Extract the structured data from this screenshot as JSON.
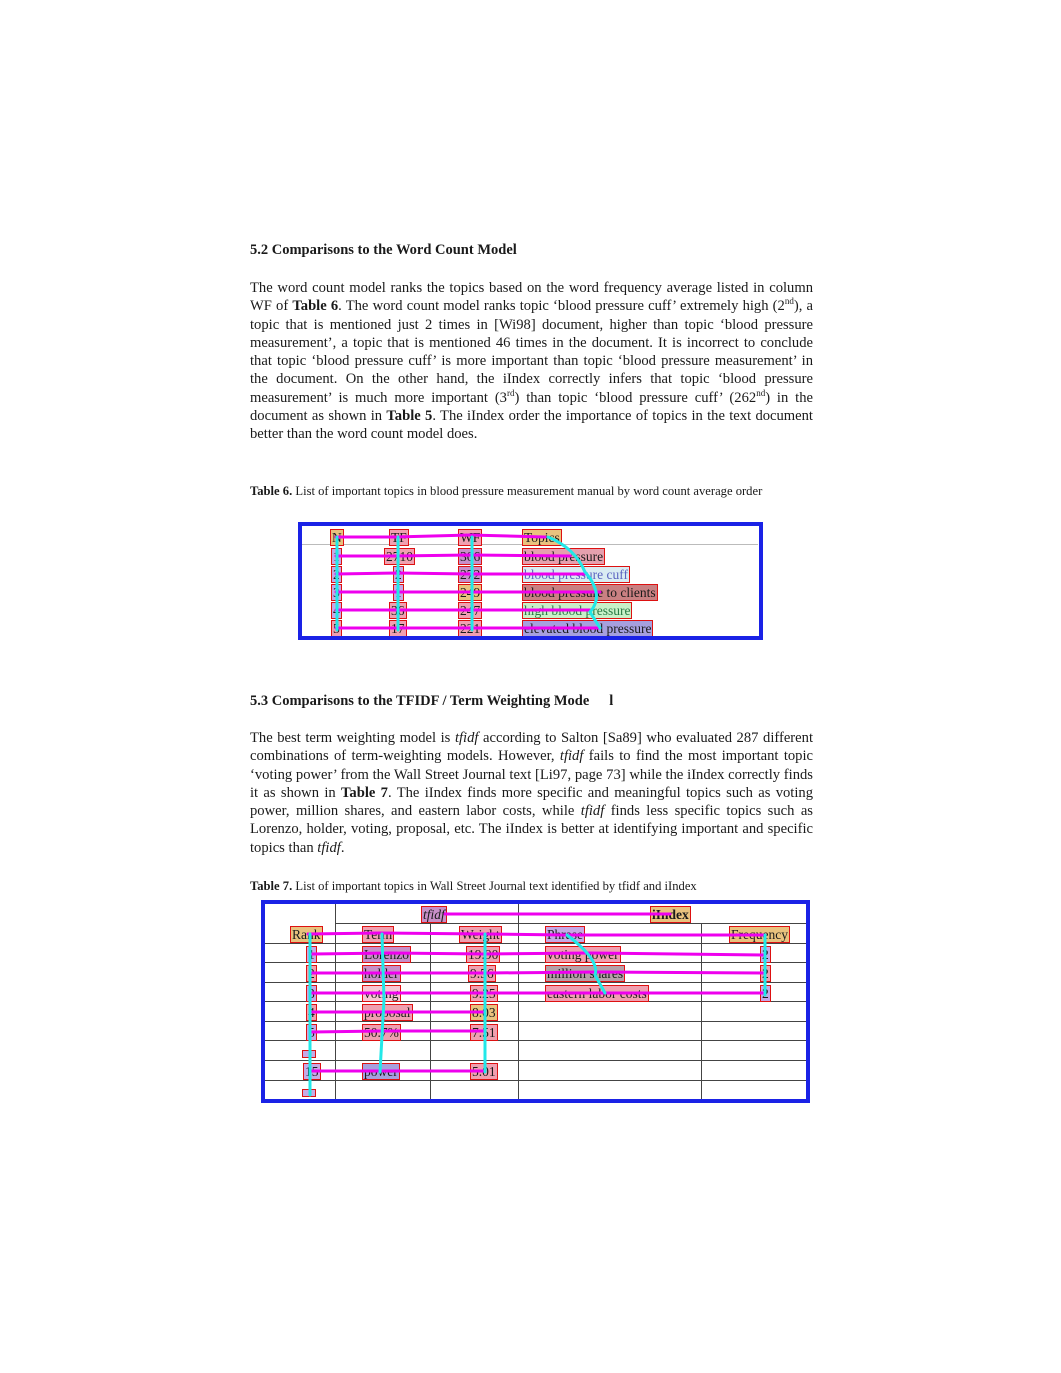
{
  "section_52": {
    "heading": "5.2  Comparisons to the Word Count Model",
    "para_1": "The word count model ranks the topics based on the word frequency average listed in column WF of ",
    "ref_table6": "Table 6",
    "para_2": ". The word count model ranks topic ‘blood pressure cuff’ extremely high (2",
    "sup_nd": "nd",
    "para_3": "), a topic that is mentioned just 2 times in [Wi98] document, higher than topic ‘blood pressure measurement’, a topic that is mentioned 46 times in the document. It is incorrect to conclude that topic ‘blood pressure cuff’ is more important than topic ‘blood pressure measurement’ in the document. On the other hand, the iIndex correctly infers that topic ‘blood pressure measurement’ is much more important (3",
    "sup_rd": "rd",
    "para_4": ") than topic ‘blood pressure cuff’ (262",
    "sup_nd2": "nd",
    "para_5": ") in the document as shown in ",
    "ref_table5": "Table 5",
    "para_6": ". The iIndex order the importance of topics in the text document better than the word count model does."
  },
  "table6": {
    "caption_label": "Table 6.",
    "caption_text": "  List of important topics in blood pressure measurement manual by word count average order",
    "headers": [
      "N",
      "TF",
      "WF",
      "Topics"
    ],
    "rows": [
      [
        "1",
        "2710",
        "306",
        "blood pressure"
      ],
      [
        "2",
        "2",
        "272",
        "blood pressure cuff"
      ],
      [
        "3",
        "1",
        "249",
        "blood pressure to clients"
      ],
      [
        "4",
        "36",
        "247",
        "high blood pressure"
      ],
      [
        "5",
        "17",
        "221",
        "elevated blood pressure"
      ]
    ]
  },
  "section_53": {
    "heading": "5.3  Comparisons to the TFIDF / Term Weighting Mode",
    "heading_tail": "l",
    "para_1": "The best term weighting model is ",
    "tfidf_1": "tfidf",
    "para_2": " according to Salton [Sa89] who evaluated 287 different combinations of term-weighting models. However, ",
    "tfidf_2": "tfidf",
    "para_3": " fails to find the most important topic ‘voting power’ from the Wall Street Journal text [Li97, page 73] while the iIndex correctly finds it as shown in ",
    "ref_table7": "Table 7",
    "para_4": ". The iIndex finds more specific and meaningful topics such as voting power, million shares, and eastern labor costs, while ",
    "tfidf_3": "tfidf",
    "para_5": " finds less specific topics such as Lorenzo, holder, voting, proposal, etc. The iIndex is better at identifying important and specific topics than ",
    "tfidf_4": "tfidf",
    "para_6": "."
  },
  "table7": {
    "caption_label": "Table 7.",
    "caption_text": "  List of important topics in Wall Street Journal text identified by tfidf and iIndex",
    "group_tfidf": "tfidf",
    "group_iindex": "iIndex",
    "headers": [
      "Rank",
      "Term",
      "Weight",
      "Phrase",
      "Frequency"
    ],
    "rows": [
      [
        "1",
        "Lorenzo",
        "19.90",
        "voting power",
        "2"
      ],
      [
        "2",
        "holder",
        "9.56",
        "million shares",
        "2"
      ],
      [
        "3",
        "voting",
        "9.25",
        "eastern labor costs",
        "2"
      ],
      [
        "4",
        "proposal",
        "8.03",
        "",
        ""
      ],
      [
        "5",
        "50.7%",
        "7.51",
        "",
        ""
      ],
      [
        "",
        "",
        "",
        "",
        ""
      ],
      [
        "15",
        "power",
        "5.01",
        "",
        ""
      ],
      [
        "",
        "",
        "",
        "",
        ""
      ]
    ]
  }
}
